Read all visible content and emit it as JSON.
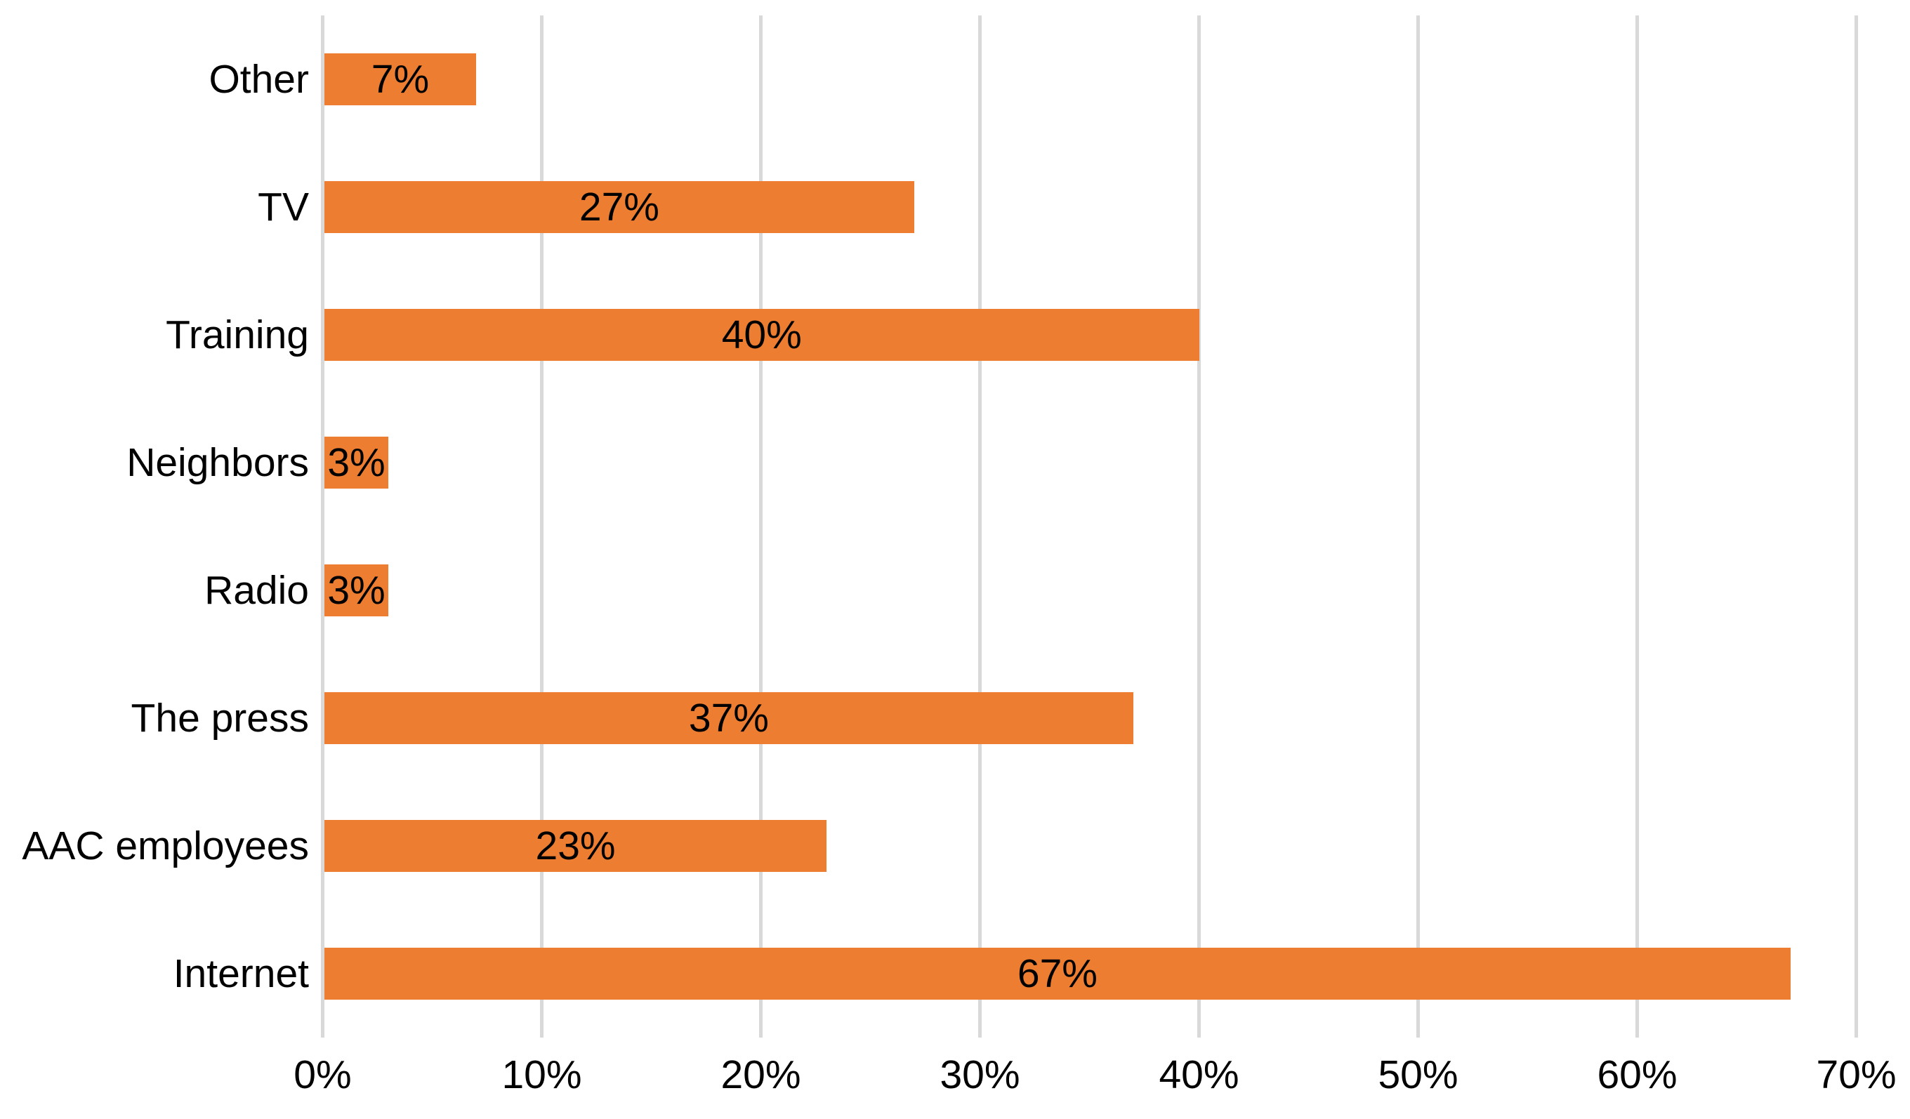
{
  "chart_data": {
    "type": "bar",
    "orientation": "horizontal",
    "order": "top-to-bottom",
    "title": "",
    "xlabel": "",
    "ylabel": "",
    "categories": [
      "Other",
      "TV",
      "Training",
      "Neighbors",
      "Radio",
      "The press",
      "AAC employees",
      "Internet"
    ],
    "values": [
      7,
      27,
      40,
      3,
      3,
      37,
      23,
      67
    ],
    "value_labels": [
      "7%",
      "27%",
      "40%",
      "3%",
      "3%",
      "37%",
      "23%",
      "67%"
    ],
    "value_label_position": "inside-center",
    "xlim": [
      0,
      70
    ],
    "x_tick_step": 10,
    "x_ticks": [
      "0%",
      "10%",
      "20%",
      "30%",
      "40%",
      "50%",
      "60%",
      "70%"
    ],
    "grid": "vertical-only",
    "legend": "none",
    "colors": {
      "bar": "#ED7D31",
      "gridline": "#D9D9D9",
      "text": "#000000",
      "background": "#FFFFFF"
    }
  }
}
